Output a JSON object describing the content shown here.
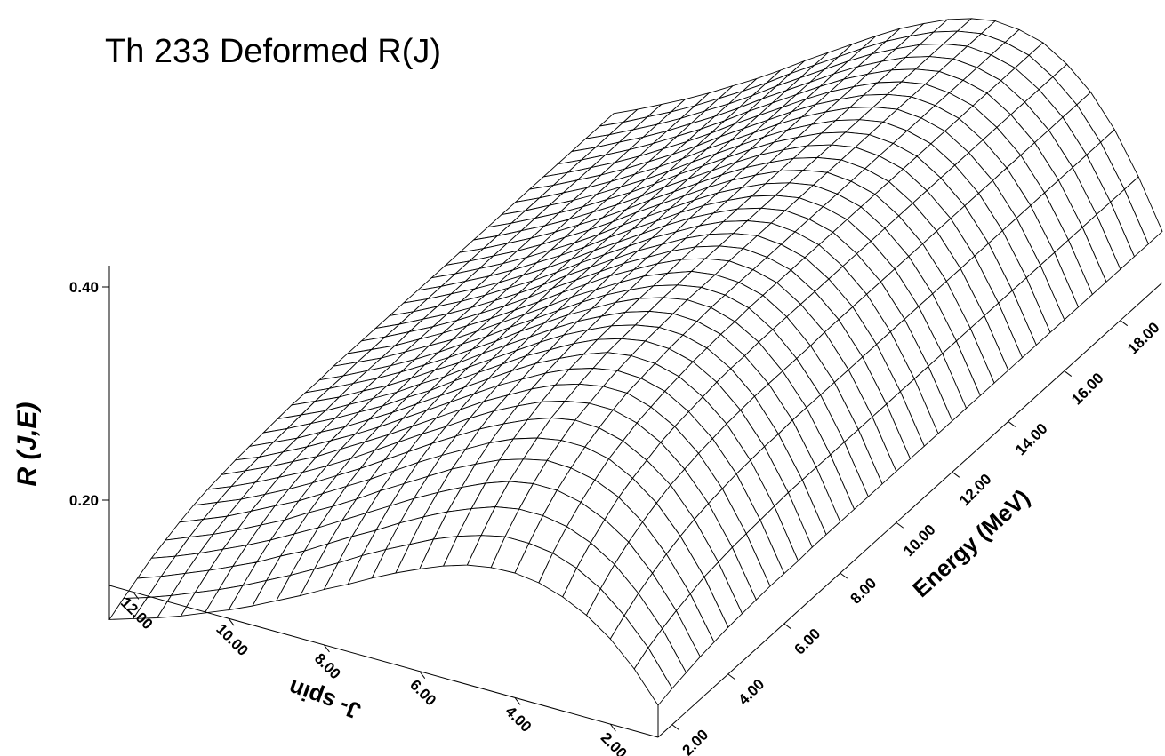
{
  "chart_data": {
    "type": "surface",
    "title": "Th 233 Deformed R(J)",
    "xlabel": "J- spin",
    "ylabel": "Energy (MeV)",
    "zlabel": "R (J,E)",
    "j_ticks": [
      "12.00",
      "10.00",
      "8.00",
      "6.00",
      "4.00",
      "2.00"
    ],
    "e_ticks": [
      "2.00",
      "4.00",
      "6.00",
      "8.00",
      "10.00",
      "12.00",
      "14.00",
      "16.00",
      "18.00"
    ],
    "z_ticks": [
      "0.20",
      "0.40"
    ],
    "j_range": [
      1,
      12.5
    ],
    "e_range": [
      1.5,
      19.5
    ],
    "z_range": [
      0.12,
      0.42
    ],
    "j_values": [
      1.0,
      1.5,
      2.0,
      2.5,
      3.0,
      3.5,
      4.0,
      4.5,
      5.0,
      5.5,
      6.0,
      6.5,
      7.0,
      7.5,
      8.0,
      8.5,
      9.0,
      9.5,
      10.0,
      10.5,
      11.0,
      11.5,
      12.0,
      12.5
    ],
    "e_values": [
      1.5,
      2.0,
      2.5,
      3.0,
      3.5,
      4.0,
      4.5,
      5.0,
      5.5,
      6.0,
      6.5,
      7.0,
      7.5,
      8.0,
      8.5,
      9.0,
      9.5,
      10.0,
      10.5,
      11.0,
      11.5,
      12.0,
      12.5,
      13.0,
      13.5,
      14.0,
      14.5,
      15.0,
      15.5,
      16.0,
      16.5,
      17.0,
      17.5,
      18.0,
      18.5,
      19.0,
      19.5
    ],
    "r_values": [
      [
        0.15,
        0.154,
        0.157,
        0.16,
        0.162,
        0.164,
        0.165,
        0.166,
        0.167,
        0.167,
        0.167,
        0.168,
        0.168,
        0.168,
        0.168,
        0.168,
        0.168,
        0.168,
        0.168,
        0.168,
        0.168,
        0.168,
        0.168,
        0.168,
        0.168,
        0.168,
        0.168,
        0.168,
        0.168,
        0.168,
        0.168,
        0.168,
        0.168,
        0.168,
        0.168,
        0.168,
        0.168
      ],
      [
        0.178,
        0.186,
        0.192,
        0.197,
        0.201,
        0.205,
        0.207,
        0.209,
        0.21,
        0.211,
        0.212,
        0.213,
        0.213,
        0.213,
        0.213,
        0.213,
        0.213,
        0.213,
        0.213,
        0.213,
        0.213,
        0.213,
        0.213,
        0.213,
        0.213,
        0.213,
        0.213,
        0.213,
        0.213,
        0.213,
        0.213,
        0.213,
        0.213,
        0.213,
        0.213,
        0.213,
        0.213
      ],
      [
        0.2,
        0.21,
        0.219,
        0.226,
        0.232,
        0.237,
        0.241,
        0.244,
        0.246,
        0.248,
        0.249,
        0.25,
        0.25,
        0.251,
        0.251,
        0.251,
        0.251,
        0.251,
        0.251,
        0.251,
        0.251,
        0.251,
        0.251,
        0.251,
        0.251,
        0.251,
        0.251,
        0.251,
        0.251,
        0.251,
        0.251,
        0.251,
        0.251,
        0.251,
        0.251,
        0.251,
        0.251
      ],
      [
        0.216,
        0.229,
        0.24,
        0.249,
        0.256,
        0.262,
        0.267,
        0.27,
        0.273,
        0.275,
        0.277,
        0.278,
        0.279,
        0.279,
        0.279,
        0.279,
        0.279,
        0.28,
        0.28,
        0.28,
        0.28,
        0.28,
        0.28,
        0.28,
        0.28,
        0.28,
        0.28,
        0.28,
        0.28,
        0.28,
        0.28,
        0.28,
        0.28,
        0.28,
        0.28,
        0.28,
        0.28
      ],
      [
        0.227,
        0.242,
        0.254,
        0.264,
        0.273,
        0.279,
        0.284,
        0.289,
        0.292,
        0.294,
        0.296,
        0.298,
        0.299,
        0.299,
        0.3,
        0.3,
        0.3,
        0.3,
        0.3,
        0.3,
        0.3,
        0.3,
        0.3,
        0.3,
        0.3,
        0.3,
        0.3,
        0.3,
        0.3,
        0.3,
        0.3,
        0.3,
        0.3,
        0.3,
        0.3,
        0.3,
        0.3
      ],
      [
        0.234,
        0.25,
        0.263,
        0.274,
        0.283,
        0.291,
        0.296,
        0.301,
        0.304,
        0.307,
        0.309,
        0.311,
        0.312,
        0.313,
        0.313,
        0.314,
        0.314,
        0.314,
        0.314,
        0.314,
        0.314,
        0.314,
        0.314,
        0.314,
        0.314,
        0.314,
        0.314,
        0.314,
        0.314,
        0.314,
        0.314,
        0.314,
        0.314,
        0.314,
        0.314,
        0.314,
        0.314
      ],
      [
        0.237,
        0.253,
        0.267,
        0.279,
        0.288,
        0.296,
        0.302,
        0.307,
        0.311,
        0.313,
        0.315,
        0.317,
        0.318,
        0.319,
        0.32,
        0.32,
        0.32,
        0.32,
        0.32,
        0.32,
        0.32,
        0.32,
        0.32,
        0.32,
        0.32,
        0.32,
        0.32,
        0.32,
        0.32,
        0.32,
        0.32,
        0.32,
        0.32,
        0.32,
        0.32,
        0.32,
        0.32
      ],
      [
        0.236,
        0.253,
        0.267,
        0.279,
        0.289,
        0.296,
        0.303,
        0.307,
        0.311,
        0.314,
        0.316,
        0.318,
        0.319,
        0.32,
        0.321,
        0.321,
        0.321,
        0.322,
        0.322,
        0.322,
        0.322,
        0.322,
        0.322,
        0.322,
        0.322,
        0.322,
        0.322,
        0.322,
        0.322,
        0.322,
        0.322,
        0.322,
        0.322,
        0.322,
        0.322,
        0.322,
        0.322
      ],
      [
        0.232,
        0.248,
        0.263,
        0.275,
        0.284,
        0.292,
        0.299,
        0.303,
        0.307,
        0.31,
        0.313,
        0.314,
        0.315,
        0.316,
        0.317,
        0.317,
        0.318,
        0.318,
        0.318,
        0.318,
        0.318,
        0.318,
        0.318,
        0.318,
        0.318,
        0.318,
        0.318,
        0.318,
        0.318,
        0.318,
        0.318,
        0.318,
        0.318,
        0.318,
        0.318,
        0.318,
        0.318
      ],
      [
        0.225,
        0.241,
        0.255,
        0.267,
        0.277,
        0.285,
        0.291,
        0.296,
        0.3,
        0.303,
        0.305,
        0.307,
        0.308,
        0.309,
        0.31,
        0.31,
        0.31,
        0.311,
        0.311,
        0.311,
        0.311,
        0.311,
        0.311,
        0.311,
        0.311,
        0.311,
        0.311,
        0.311,
        0.311,
        0.311,
        0.311,
        0.311,
        0.311,
        0.311,
        0.311,
        0.311,
        0.311
      ],
      [
        0.216,
        0.232,
        0.246,
        0.257,
        0.267,
        0.275,
        0.281,
        0.286,
        0.29,
        0.293,
        0.295,
        0.297,
        0.298,
        0.299,
        0.3,
        0.3,
        0.301,
        0.301,
        0.301,
        0.301,
        0.301,
        0.301,
        0.301,
        0.301,
        0.301,
        0.301,
        0.301,
        0.301,
        0.301,
        0.301,
        0.301,
        0.301,
        0.301,
        0.301,
        0.301,
        0.301,
        0.301
      ],
      [
        0.206,
        0.221,
        0.235,
        0.246,
        0.256,
        0.263,
        0.27,
        0.275,
        0.278,
        0.281,
        0.284,
        0.285,
        0.287,
        0.288,
        0.288,
        0.289,
        0.289,
        0.289,
        0.289,
        0.289,
        0.289,
        0.29,
        0.29,
        0.29,
        0.29,
        0.29,
        0.29,
        0.29,
        0.29,
        0.29,
        0.29,
        0.29,
        0.29,
        0.29,
        0.29,
        0.29,
        0.29
      ],
      [
        0.195,
        0.21,
        0.223,
        0.234,
        0.243,
        0.251,
        0.257,
        0.262,
        0.266,
        0.269,
        0.271,
        0.273,
        0.274,
        0.275,
        0.276,
        0.276,
        0.276,
        0.277,
        0.277,
        0.277,
        0.277,
        0.277,
        0.277,
        0.277,
        0.277,
        0.277,
        0.277,
        0.277,
        0.277,
        0.277,
        0.277,
        0.277,
        0.277,
        0.277,
        0.277,
        0.277,
        0.277
      ],
      [
        0.183,
        0.198,
        0.21,
        0.221,
        0.23,
        0.238,
        0.244,
        0.248,
        0.252,
        0.255,
        0.257,
        0.259,
        0.26,
        0.261,
        0.262,
        0.262,
        0.263,
        0.263,
        0.263,
        0.263,
        0.263,
        0.263,
        0.263,
        0.263,
        0.263,
        0.263,
        0.263,
        0.263,
        0.263,
        0.263,
        0.263,
        0.263,
        0.263,
        0.263,
        0.263,
        0.263,
        0.263
      ],
      [
        0.172,
        0.185,
        0.198,
        0.208,
        0.217,
        0.224,
        0.23,
        0.235,
        0.238,
        0.241,
        0.243,
        0.245,
        0.246,
        0.247,
        0.248,
        0.248,
        0.248,
        0.249,
        0.249,
        0.249,
        0.249,
        0.249,
        0.249,
        0.249,
        0.249,
        0.249,
        0.249,
        0.249,
        0.249,
        0.249,
        0.249,
        0.249,
        0.249,
        0.249,
        0.249,
        0.249,
        0.249
      ],
      [
        0.16,
        0.173,
        0.185,
        0.195,
        0.203,
        0.21,
        0.216,
        0.221,
        0.224,
        0.227,
        0.229,
        0.231,
        0.232,
        0.233,
        0.233,
        0.234,
        0.234,
        0.234,
        0.235,
        0.235,
        0.235,
        0.235,
        0.235,
        0.235,
        0.235,
        0.235,
        0.235,
        0.235,
        0.235,
        0.235,
        0.235,
        0.235,
        0.235,
        0.235,
        0.235,
        0.235,
        0.235
      ],
      [
        0.149,
        0.161,
        0.172,
        0.182,
        0.19,
        0.197,
        0.202,
        0.207,
        0.21,
        0.213,
        0.215,
        0.216,
        0.217,
        0.218,
        0.219,
        0.219,
        0.22,
        0.22,
        0.22,
        0.22,
        0.22,
        0.22,
        0.22,
        0.22,
        0.22,
        0.22,
        0.22,
        0.22,
        0.22,
        0.22,
        0.22,
        0.22,
        0.22,
        0.22,
        0.22,
        0.22,
        0.22
      ],
      [
        0.138,
        0.15,
        0.161,
        0.17,
        0.178,
        0.184,
        0.189,
        0.193,
        0.197,
        0.199,
        0.201,
        0.203,
        0.204,
        0.205,
        0.205,
        0.206,
        0.206,
        0.206,
        0.206,
        0.206,
        0.206,
        0.206,
        0.206,
        0.206,
        0.206,
        0.206,
        0.206,
        0.206,
        0.206,
        0.206,
        0.206,
        0.206,
        0.206,
        0.206,
        0.206,
        0.206,
        0.206
      ],
      [
        0.128,
        0.139,
        0.149,
        0.158,
        0.165,
        0.171,
        0.176,
        0.18,
        0.184,
        0.186,
        0.188,
        0.189,
        0.19,
        0.191,
        0.192,
        0.192,
        0.192,
        0.193,
        0.193,
        0.193,
        0.193,
        0.193,
        0.193,
        0.193,
        0.193,
        0.193,
        0.193,
        0.193,
        0.193,
        0.193,
        0.193,
        0.193,
        0.193,
        0.193,
        0.193,
        0.193,
        0.193
      ],
      [
        0.119,
        0.129,
        0.139,
        0.147,
        0.154,
        0.16,
        0.164,
        0.168,
        0.171,
        0.174,
        0.175,
        0.177,
        0.178,
        0.178,
        0.179,
        0.179,
        0.18,
        0.18,
        0.18,
        0.18,
        0.18,
        0.18,
        0.18,
        0.18,
        0.18,
        0.18,
        0.18,
        0.18,
        0.18,
        0.18,
        0.18,
        0.18,
        0.18,
        0.18,
        0.18,
        0.18,
        0.18
      ],
      [
        0.11,
        0.12,
        0.129,
        0.137,
        0.143,
        0.149,
        0.153,
        0.157,
        0.16,
        0.162,
        0.164,
        0.165,
        0.166,
        0.167,
        0.167,
        0.167,
        0.168,
        0.168,
        0.168,
        0.168,
        0.168,
        0.168,
        0.168,
        0.168,
        0.168,
        0.168,
        0.168,
        0.168,
        0.168,
        0.168,
        0.168,
        0.168,
        0.168,
        0.168,
        0.168,
        0.168,
        0.168
      ],
      [
        0.102,
        0.111,
        0.12,
        0.127,
        0.133,
        0.138,
        0.142,
        0.146,
        0.149,
        0.151,
        0.152,
        0.154,
        0.154,
        0.155,
        0.156,
        0.156,
        0.156,
        0.156,
        0.157,
        0.157,
        0.157,
        0.157,
        0.157,
        0.157,
        0.157,
        0.157,
        0.157,
        0.157,
        0.157,
        0.157,
        0.157,
        0.157,
        0.157,
        0.157,
        0.157,
        0.157,
        0.157
      ],
      [
        0.095,
        0.103,
        0.111,
        0.118,
        0.124,
        0.129,
        0.133,
        0.136,
        0.139,
        0.14,
        0.142,
        0.143,
        0.144,
        0.145,
        0.145,
        0.145,
        0.146,
        0.146,
        0.146,
        0.146,
        0.146,
        0.146,
        0.146,
        0.146,
        0.146,
        0.146,
        0.146,
        0.146,
        0.146,
        0.146,
        0.146,
        0.146,
        0.146,
        0.146,
        0.146,
        0.146,
        0.146
      ],
      [
        0.088,
        0.096,
        0.103,
        0.11,
        0.115,
        0.12,
        0.124,
        0.127,
        0.129,
        0.131,
        0.132,
        0.133,
        0.134,
        0.135,
        0.135,
        0.135,
        0.136,
        0.136,
        0.136,
        0.136,
        0.136,
        0.136,
        0.136,
        0.136,
        0.136,
        0.136,
        0.136,
        0.136,
        0.136,
        0.136,
        0.136,
        0.136,
        0.136,
        0.136,
        0.136,
        0.136,
        0.136
      ]
    ],
    "grid": true,
    "wireframe_color": "#000000",
    "background_color": "#ffffff"
  }
}
